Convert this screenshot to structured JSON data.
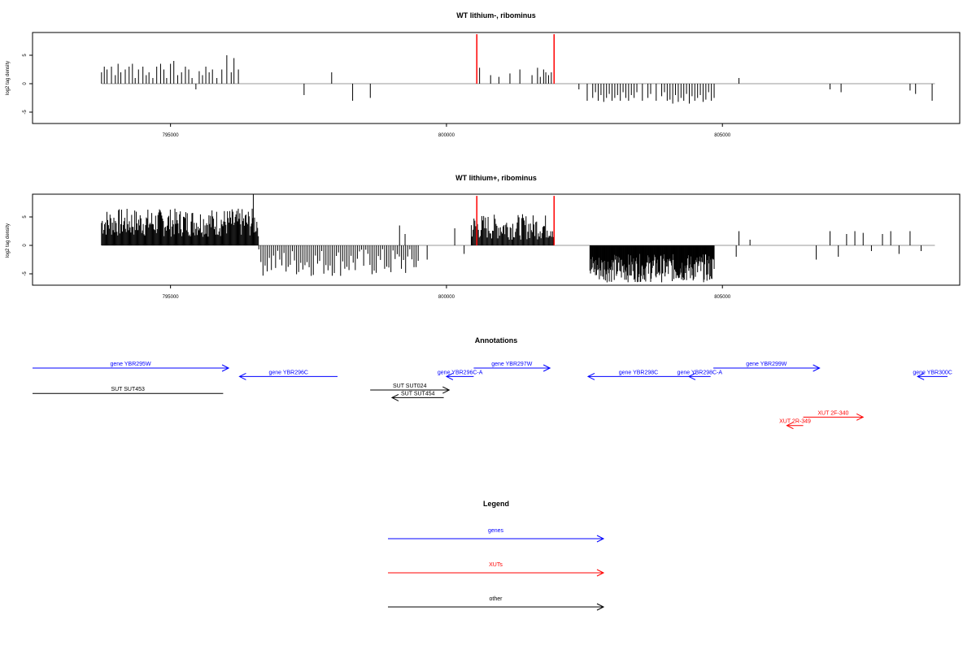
{
  "chart_data": [
    {
      "type": "bar",
      "title": "WT lithium-, ribominus",
      "ylabel": "log2 tag density",
      "xlim": [
        792500,
        809300
      ],
      "ylim": [
        -7,
        9
      ],
      "x_ticks": [
        795000,
        800000,
        805000
      ],
      "y_ticks": [
        5,
        0,
        -5
      ],
      "highlight_x": [
        800550,
        801950
      ],
      "highlight_color": "#ff0000",
      "series": [
        {
          "x": [
            793750,
            793800,
            793850,
            793930,
            794000,
            794050,
            794100,
            794180,
            794250,
            794310,
            794360,
            794420,
            794500,
            794560,
            794610,
            794680,
            794750,
            794820,
            794880,
            794930,
            795000,
            795060,
            795130,
            795200,
            795270,
            795330,
            795390,
            795460,
            795520,
            795580,
            795640,
            795700,
            795760,
            795840,
            795930,
            796020,
            796100,
            796150,
            796230,
            797420,
            797920,
            798300,
            798620,
            800600,
            800800,
            800950,
            801150,
            801330,
            801550,
            801650,
            801700,
            801760,
            801800,
            801850,
            801900,
            802400,
            802550,
            802650,
            802700,
            802750,
            802800,
            802850,
            802900,
            802950,
            803000,
            803050,
            803100,
            803150,
            803200,
            803250,
            803300,
            803350,
            803400,
            803450,
            803550,
            803650,
            803700,
            803800,
            803900,
            803950,
            804000,
            804050,
            804100,
            804150,
            804200,
            804250,
            804300,
            804350,
            804400,
            804450,
            804500,
            804550,
            804600,
            804650,
            804700,
            804750,
            804800,
            804850,
            805300,
            806950,
            807150,
            808400,
            808500,
            808800
          ],
          "values": [
            2,
            3,
            2.5,
            3,
            1.5,
            3.5,
            2,
            2.5,
            3,
            3.5,
            1,
            2.5,
            3,
            1.5,
            2,
            1,
            3,
            3.5,
            2.5,
            1,
            3.5,
            4,
            1.5,
            2,
            3,
            2.5,
            1,
            -1,
            2.2,
            1.5,
            3,
            2,
            2.5,
            1,
            2.5,
            5,
            2,
            4.5,
            2.5,
            -2,
            2,
            -3,
            -2.5,
            2.8,
            1.5,
            1.2,
            1.8,
            2.5,
            1.5,
            2.8,
            1.2,
            2.5,
            2,
            1.5,
            2,
            -1,
            -3,
            -2.5,
            -1.5,
            -3,
            -2,
            -3.2,
            -2.5,
            -1.8,
            -3,
            -2.5,
            -2,
            -3,
            -1.5,
            -2.5,
            -3,
            -2,
            -2.5,
            -1.5,
            -3,
            -2.5,
            -1.8,
            -3,
            -2.2,
            -1.5,
            -3,
            -2.8,
            -3.5,
            -2,
            -3.2,
            -2.5,
            -3,
            -1.8,
            -3.5,
            -2.2,
            -3,
            -2.5,
            -2,
            -3.2,
            -2.8,
            -1.5,
            -3,
            -2.5,
            1,
            -1,
            -1.5,
            -1.2,
            -1.8,
            -3
          ]
        }
      ]
    },
    {
      "type": "bar",
      "title": "WT lithium+, ribominus",
      "ylabel": "log2 tag density",
      "xlim": [
        792500,
        809300
      ],
      "ylim": [
        -7,
        9
      ],
      "x_ticks": [
        795000,
        800000,
        805000
      ],
      "y_ticks": [
        5,
        0,
        -5
      ],
      "highlight_x": [
        800550,
        801950
      ],
      "highlight_color": "#ff0000",
      "dense_segments": [
        {
          "start": 793750,
          "end": 796600,
          "min": 1.5,
          "max": 6.5,
          "step": 14
        },
        {
          "start": 796600,
          "end": 799500,
          "min": -5.5,
          "max": -0.5,
          "step": 38
        },
        {
          "start": 800450,
          "end": 801950,
          "min": 1,
          "max": 5.5,
          "step": 16
        },
        {
          "start": 802600,
          "end": 804850,
          "min": -6.5,
          "max": -1.5,
          "step": 10
        }
      ],
      "series": [
        {
          "x": [
            796500,
            799150,
            799250,
            799650,
            800150,
            800320,
            800450,
            805250,
            805300,
            805500,
            806700,
            806950,
            807100,
            807250,
            807400,
            807550,
            807700,
            807900,
            808050,
            808200,
            808400,
            808600
          ],
          "values": [
            9,
            3.5,
            2,
            -2.5,
            3,
            -1.5,
            1.5,
            -2,
            2.5,
            1,
            -2.5,
            2.5,
            -2,
            2,
            2.5,
            2.2,
            -1,
            2,
            2.5,
            -1.5,
            2.5,
            -1
          ]
        }
      ]
    }
  ],
  "annotations": {
    "title": "Annotations",
    "xlim": [
      792500,
      809300
    ],
    "features": [
      {
        "label": "gene YBR295W",
        "start": 792500,
        "end": 796100,
        "strand": "+",
        "row": 0,
        "color": "#0000ff"
      },
      {
        "label": "gene YBR296C",
        "start": 796300,
        "end": 798100,
        "strand": "-",
        "row": 1,
        "color": "#0000ff"
      },
      {
        "label": "gene YBR296C-A",
        "start": 800100,
        "end": 800600,
        "strand": "-",
        "row": 1,
        "color": "#0000ff"
      },
      {
        "label": "gene YBR297W",
        "start": 800600,
        "end": 802000,
        "strand": "+",
        "row": 0,
        "color": "#0000ff"
      },
      {
        "label": "gene YBR298C",
        "start": 802700,
        "end": 804550,
        "strand": "-",
        "row": 1,
        "color": "#0000ff"
      },
      {
        "label": "gene YBR298C-A",
        "start": 804550,
        "end": 804950,
        "strand": "-",
        "row": 1,
        "color": "#0000ff"
      },
      {
        "label": "gene YBR299W",
        "start": 805000,
        "end": 806950,
        "strand": "+",
        "row": 0,
        "color": "#0000ff"
      },
      {
        "label": "gene YBR300C",
        "start": 808750,
        "end": 809300,
        "strand": "-",
        "row": 1,
        "color": "#0000ff"
      },
      {
        "label": "SUT SUT453",
        "start": 792500,
        "end": 796000,
        "strand": "none",
        "row": 3,
        "color": "#000000"
      },
      {
        "label": "SUT SUT024",
        "start": 798700,
        "end": 800150,
        "strand": "+",
        "row": 2.6,
        "color": "#000000"
      },
      {
        "label": "SUT SUT454",
        "start": 799100,
        "end": 800050,
        "strand": "-",
        "row": 3.5,
        "color": "#000000"
      },
      {
        "label": "XUT 2F-340",
        "start": 806650,
        "end": 807750,
        "strand": "+",
        "row": 5.8,
        "color": "#ff0000"
      },
      {
        "label": "XUT 2R-349",
        "start": 806350,
        "end": 806650,
        "strand": "-",
        "row": 6.8,
        "color": "#ff0000"
      }
    ]
  },
  "legend": {
    "title": "Legend",
    "items": [
      {
        "label": "genes",
        "color": "#0000ff"
      },
      {
        "label": "XUTs",
        "color": "#ff0000"
      },
      {
        "label": "other",
        "color": "#000000"
      }
    ]
  }
}
